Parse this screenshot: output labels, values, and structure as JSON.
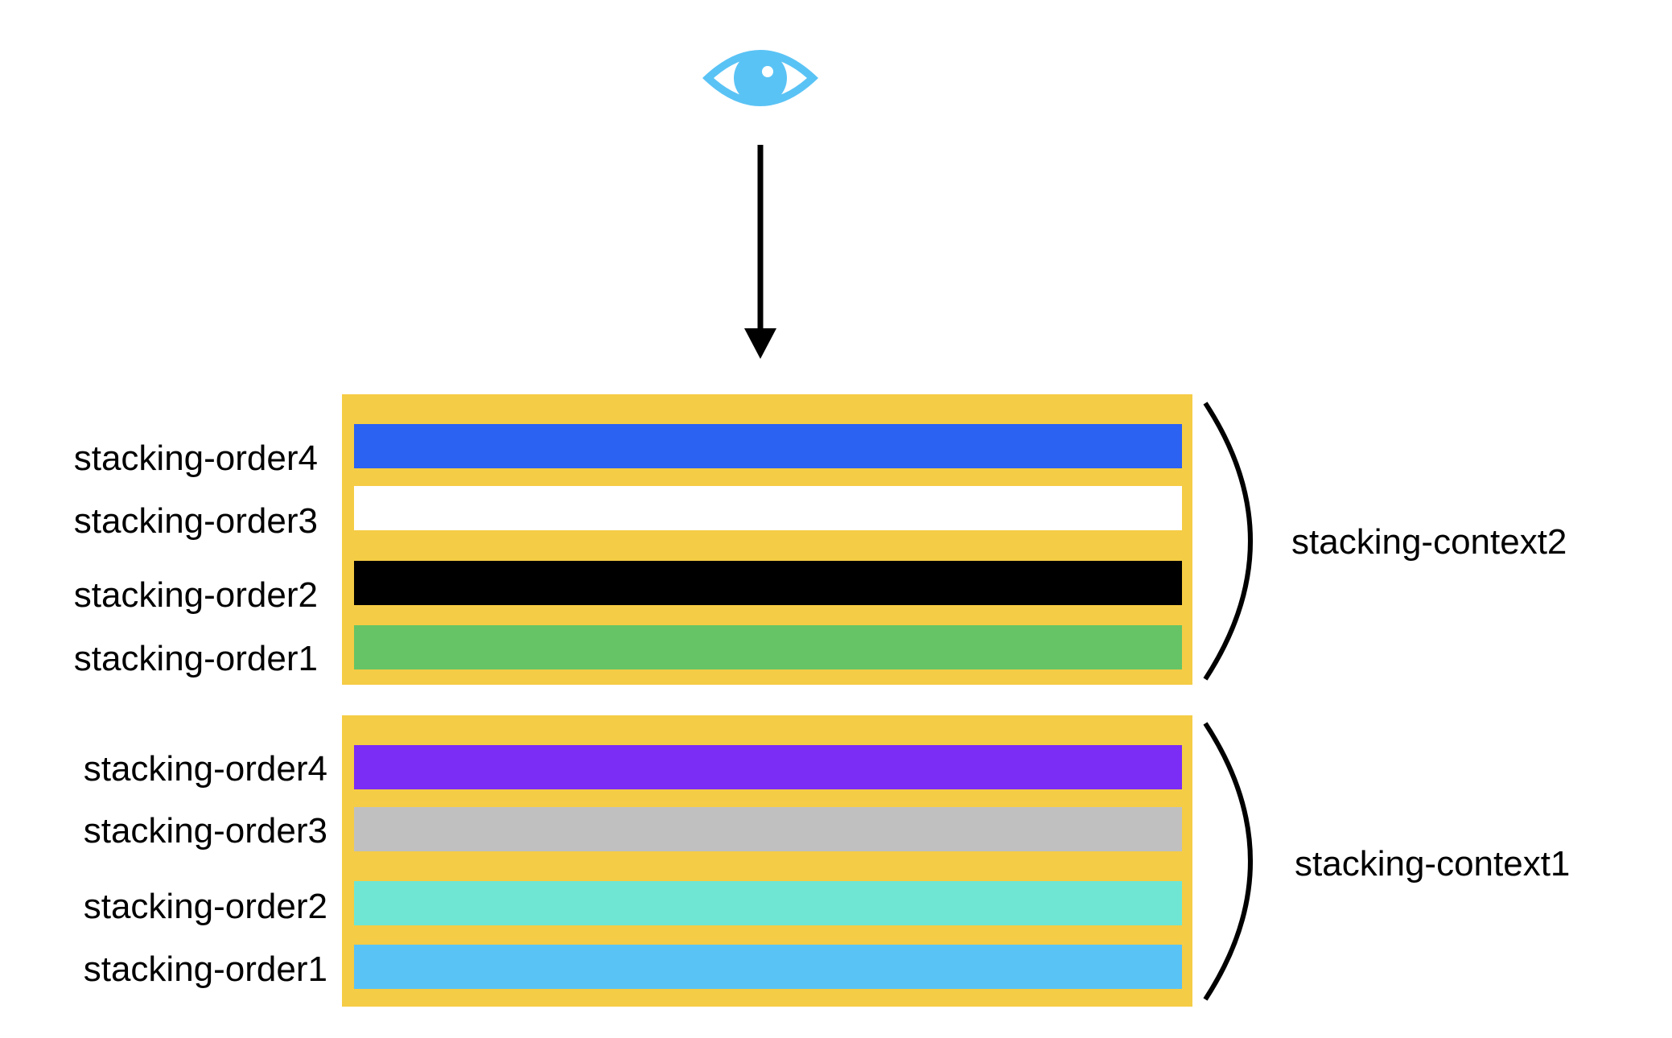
{
  "colors": {
    "background": "#ffffff",
    "context_box": "#f5cc45",
    "eye": "#5ac3f5",
    "arrow": "#000000",
    "bracket": "#000000"
  },
  "contexts": [
    {
      "label": "stacking-context2",
      "layers": [
        {
          "label": "stacking-order4",
          "color": "#2b62f2"
        },
        {
          "label": "stacking-order3",
          "color": "#ffffff"
        },
        {
          "label": "stacking-order2",
          "color": "#000000"
        },
        {
          "label": "stacking-order1",
          "color": "#66c466"
        }
      ]
    },
    {
      "label": "stacking-context1",
      "layers": [
        {
          "label": "stacking-order4",
          "color": "#7b2cf5"
        },
        {
          "label": "stacking-order3",
          "color": "#c0c0c0"
        },
        {
          "label": "stacking-order2",
          "color": "#6fe6d3"
        },
        {
          "label": "stacking-order1",
          "color": "#5ac3f5"
        }
      ]
    }
  ]
}
